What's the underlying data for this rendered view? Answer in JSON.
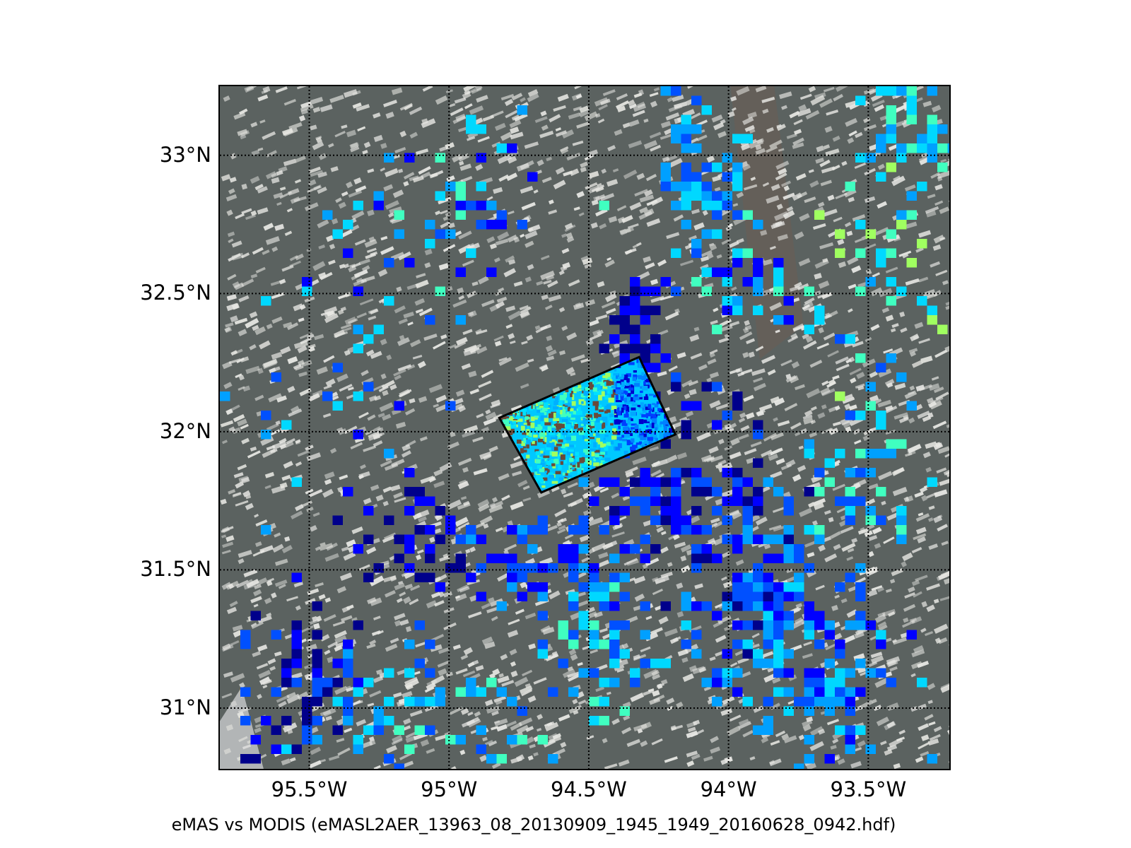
{
  "caption": "eMAS vs MODIS (eMASL2AER_13963_08_20130909_1945_1949_20160628_0942.hdf)",
  "map": {
    "projection": "lat-lon",
    "lon_range": [
      -95.82,
      -93.21
    ],
    "lat_range": [
      30.78,
      33.25
    ],
    "grid": true,
    "lat_ticks": [
      {
        "value": 33.0,
        "label": "33°N"
      },
      {
        "value": 32.5,
        "label": "32.5°N"
      },
      {
        "value": 32.0,
        "label": "32°N"
      },
      {
        "value": 31.5,
        "label": "31.5°N"
      },
      {
        "value": 31.0,
        "label": "31°N"
      }
    ],
    "lon_ticks": [
      {
        "value": -95.5,
        "label": "95.5°W"
      },
      {
        "value": -95.0,
        "label": "95°W"
      },
      {
        "value": -94.5,
        "label": "94.5°W"
      },
      {
        "value": -94.0,
        "label": "94°W"
      },
      {
        "value": -93.5,
        "label": "93.5°W"
      }
    ],
    "emas_swath_corners": [
      [
        -94.82,
        32.05
      ],
      [
        -94.32,
        32.27
      ],
      [
        -94.19,
        31.99
      ],
      [
        -94.67,
        31.78
      ]
    ],
    "colors": {
      "background_land": "#5b6260",
      "cloud": "#e8e8e4",
      "frame": "#000000",
      "grid": "#000000",
      "colormap": [
        "#00008b",
        "#0000ff",
        "#0050ff",
        "#00a0ff",
        "#00d8ff",
        "#40ffc0",
        "#a0ff60"
      ]
    }
  }
}
